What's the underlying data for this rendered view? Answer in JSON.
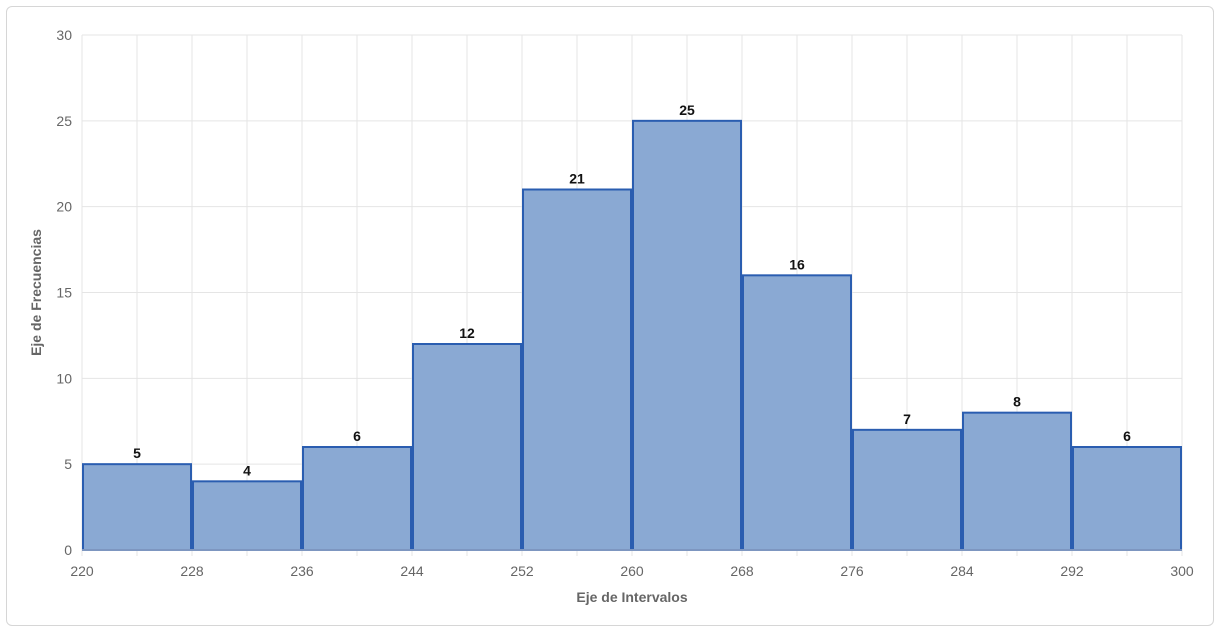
{
  "chart_data": {
    "type": "bar",
    "title": "",
    "xlabel": "Eje de Intervalos",
    "ylabel": "Eje de Frecuencias",
    "bin_edges": [
      220,
      228,
      236,
      244,
      252,
      260,
      268,
      276,
      284,
      292,
      300
    ],
    "values": [
      5,
      4,
      6,
      12,
      21,
      25,
      16,
      7,
      8,
      6
    ],
    "ylim": [
      0,
      30
    ],
    "yticks": [
      0,
      5,
      10,
      15,
      20,
      25,
      30
    ],
    "xlim": [
      220,
      300
    ],
    "grid": true,
    "legend": "none",
    "bar_fill": "#8aa9d3",
    "bar_stroke": "#2a5db0",
    "grid_color": "#e5e5e5"
  }
}
